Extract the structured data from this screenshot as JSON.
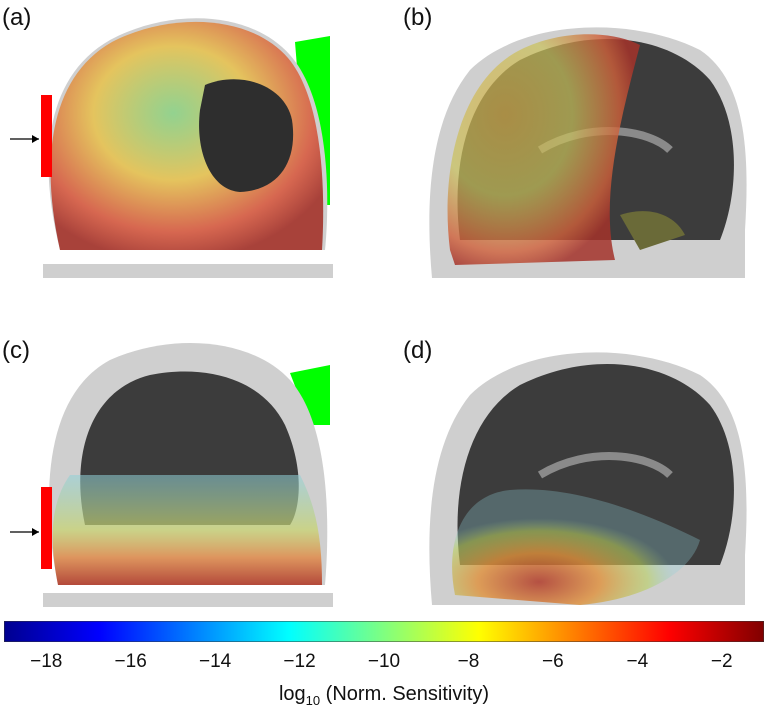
{
  "panels": [
    {
      "label": "(a)",
      "view": "coronal",
      "stimulus_arrow": true
    },
    {
      "label": "(b)",
      "view": "sagittal"
    },
    {
      "label": "(c)",
      "view": "coronal",
      "stimulus_arrow": true
    },
    {
      "label": "(d)",
      "view": "sagittal"
    }
  ],
  "colorbar": {
    "colormap": "jet",
    "ticks": [
      {
        "value": -18,
        "label": "−18"
      },
      {
        "value": -16,
        "label": "−16"
      },
      {
        "value": -14,
        "label": "−14"
      },
      {
        "value": -12,
        "label": "−12"
      },
      {
        "value": -10,
        "label": "−10"
      },
      {
        "value": -8,
        "label": "−8"
      },
      {
        "value": -6,
        "label": "−6"
      },
      {
        "value": -4,
        "label": "−4"
      },
      {
        "value": -2,
        "label": "−2"
      }
    ],
    "range": [
      -19,
      -1
    ],
    "label_prefix": "log",
    "label_sub": "10",
    "label_suffix": " (Norm. Sensitivity)"
  },
  "colors": {
    "electrode": "#ff0000",
    "ground_pad": "#00ff00",
    "scalp": "#cfcfcf",
    "brain": "#3c3c3c",
    "gray_matter": "#7a7a7a"
  }
}
